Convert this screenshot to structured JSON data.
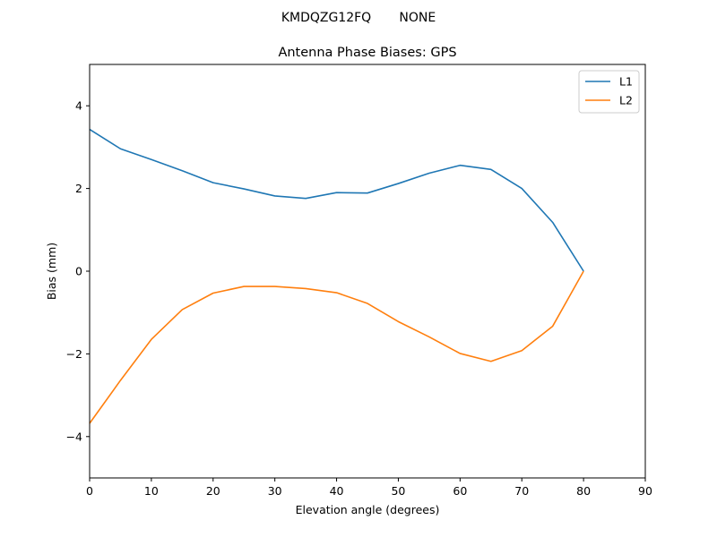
{
  "figure": {
    "suptitle": "KMDQZG12FQ       NONE"
  },
  "chart_data": {
    "type": "line",
    "title": "Antenna Phase Biases: GPS",
    "xlabel": "Elevation angle (degrees)",
    "ylabel": "Bias (mm)",
    "xlim": [
      0,
      90
    ],
    "ylim": [
      -5,
      5
    ],
    "xticks": [
      0,
      10,
      20,
      30,
      40,
      50,
      60,
      70,
      80,
      90
    ],
    "yticks": [
      -4,
      -2,
      0,
      2,
      4
    ],
    "ytick_labels": [
      "−4",
      "−2",
      "0",
      "2",
      "4"
    ],
    "grid": false,
    "legend": "top-right",
    "x": [
      0,
      5,
      10,
      15,
      20,
      25,
      30,
      35,
      40,
      45,
      50,
      55,
      60,
      65,
      70,
      75,
      80
    ],
    "series": [
      {
        "name": "L1",
        "color": "#1f77b4",
        "values": [
          3.43,
          2.96,
          2.7,
          2.43,
          2.14,
          1.99,
          1.82,
          1.76,
          1.9,
          1.89,
          2.12,
          2.37,
          2.56,
          2.46,
          2.0,
          1.18,
          0.0
        ]
      },
      {
        "name": "L2",
        "color": "#ff7f0e",
        "values": [
          -3.68,
          -2.64,
          -1.65,
          -0.93,
          -0.53,
          -0.37,
          -0.37,
          -0.42,
          -0.52,
          -0.78,
          -1.22,
          -1.59,
          -1.99,
          -2.18,
          -1.92,
          -1.33,
          0.0
        ]
      }
    ]
  }
}
